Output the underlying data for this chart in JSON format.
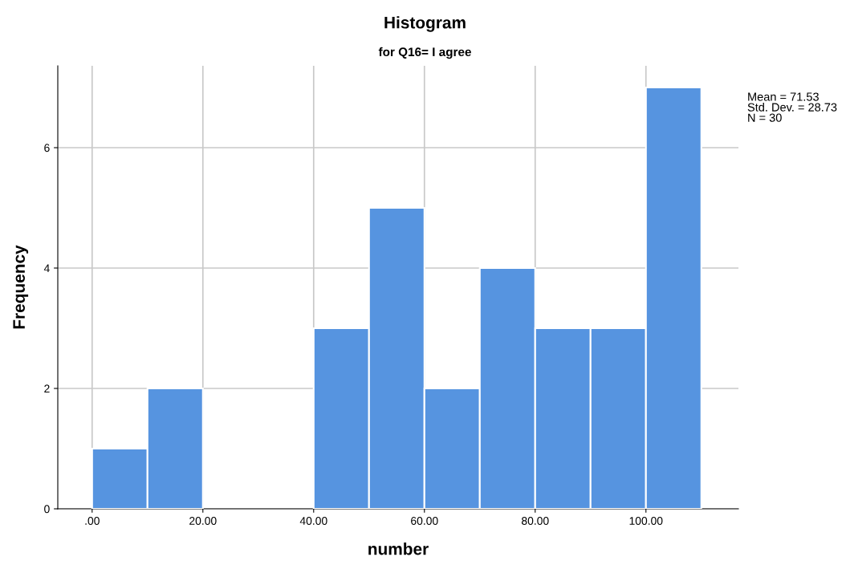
{
  "chart_data": {
    "type": "histogram",
    "title": "Histogram",
    "subtitle": "for Q16= I agree",
    "xlabel": "number",
    "ylabel": "Frequency",
    "bins": [
      0,
      10,
      20,
      30,
      40,
      50,
      60,
      70,
      80,
      90,
      100,
      110
    ],
    "values": [
      1,
      2,
      0,
      0,
      3,
      5,
      2,
      4,
      3,
      3,
      7
    ],
    "color": "#5694e0",
    "xlim": [
      -6.2,
      116.7
    ],
    "ylim": [
      0,
      7.36
    ],
    "xticks": [
      {
        "value": 0,
        "label": ".00"
      },
      {
        "value": 20,
        "label": "20.00"
      },
      {
        "value": 40,
        "label": "40.00"
      },
      {
        "value": 60,
        "label": "60.00"
      },
      {
        "value": 80,
        "label": "80.00"
      },
      {
        "value": 100,
        "label": "100.00"
      }
    ],
    "yticks": [
      0,
      2,
      4,
      6
    ],
    "grid": true,
    "annotations": [
      "Mean = 71.53\nStd. Dev. = 28.73\nN = 30"
    ]
  }
}
